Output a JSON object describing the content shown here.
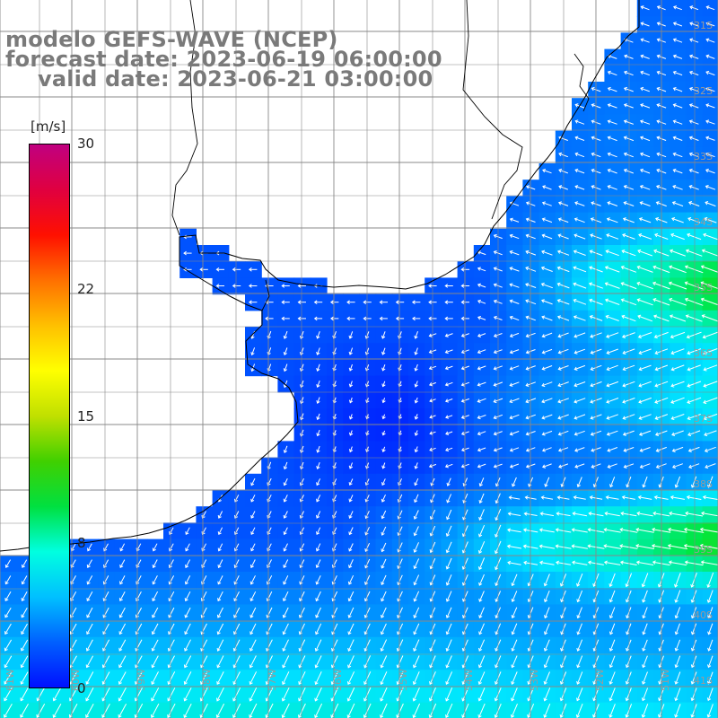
{
  "title": {
    "model": "modelo GEFS-WAVE (NCEP)",
    "forecast": "forecast date: 2023-06-19 06:00:00",
    "valid": "valid date: 2023-06-21 03:00:00"
  },
  "colorbar": {
    "unit": "[m/s]",
    "ticks": [
      {
        "value": 30,
        "label": "30"
      },
      {
        "value": 22,
        "label": "22"
      },
      {
        "value": 15,
        "label": "15"
      },
      {
        "value": 8,
        "label": "8"
      },
      {
        "value": 0,
        "label": "0"
      }
    ],
    "colors": [
      "#0010ff",
      "#0060ff",
      "#00c0ff",
      "#00ffe0",
      "#00e040",
      "#40d000",
      "#c0e000",
      "#ffff00",
      "#ffc000",
      "#ff7000",
      "#ff1000",
      "#e00040",
      "#c00080"
    ]
  },
  "lat_labels": [
    "31S",
    "32S",
    "33S",
    "34S",
    "35S",
    "36S",
    "37S",
    "38S",
    "39S",
    "40S",
    "41S"
  ],
  "lon_labels": [
    "61W",
    "60W",
    "59W",
    "58W",
    "57W",
    "56W",
    "55W",
    "54W",
    "53W",
    "52W",
    "51W"
  ],
  "colors": {
    "land": "#ffffff",
    "grid": "#888888",
    "coast": "#000000",
    "arrows": "#ffffff",
    "title_text": "#7a7a7a"
  }
}
